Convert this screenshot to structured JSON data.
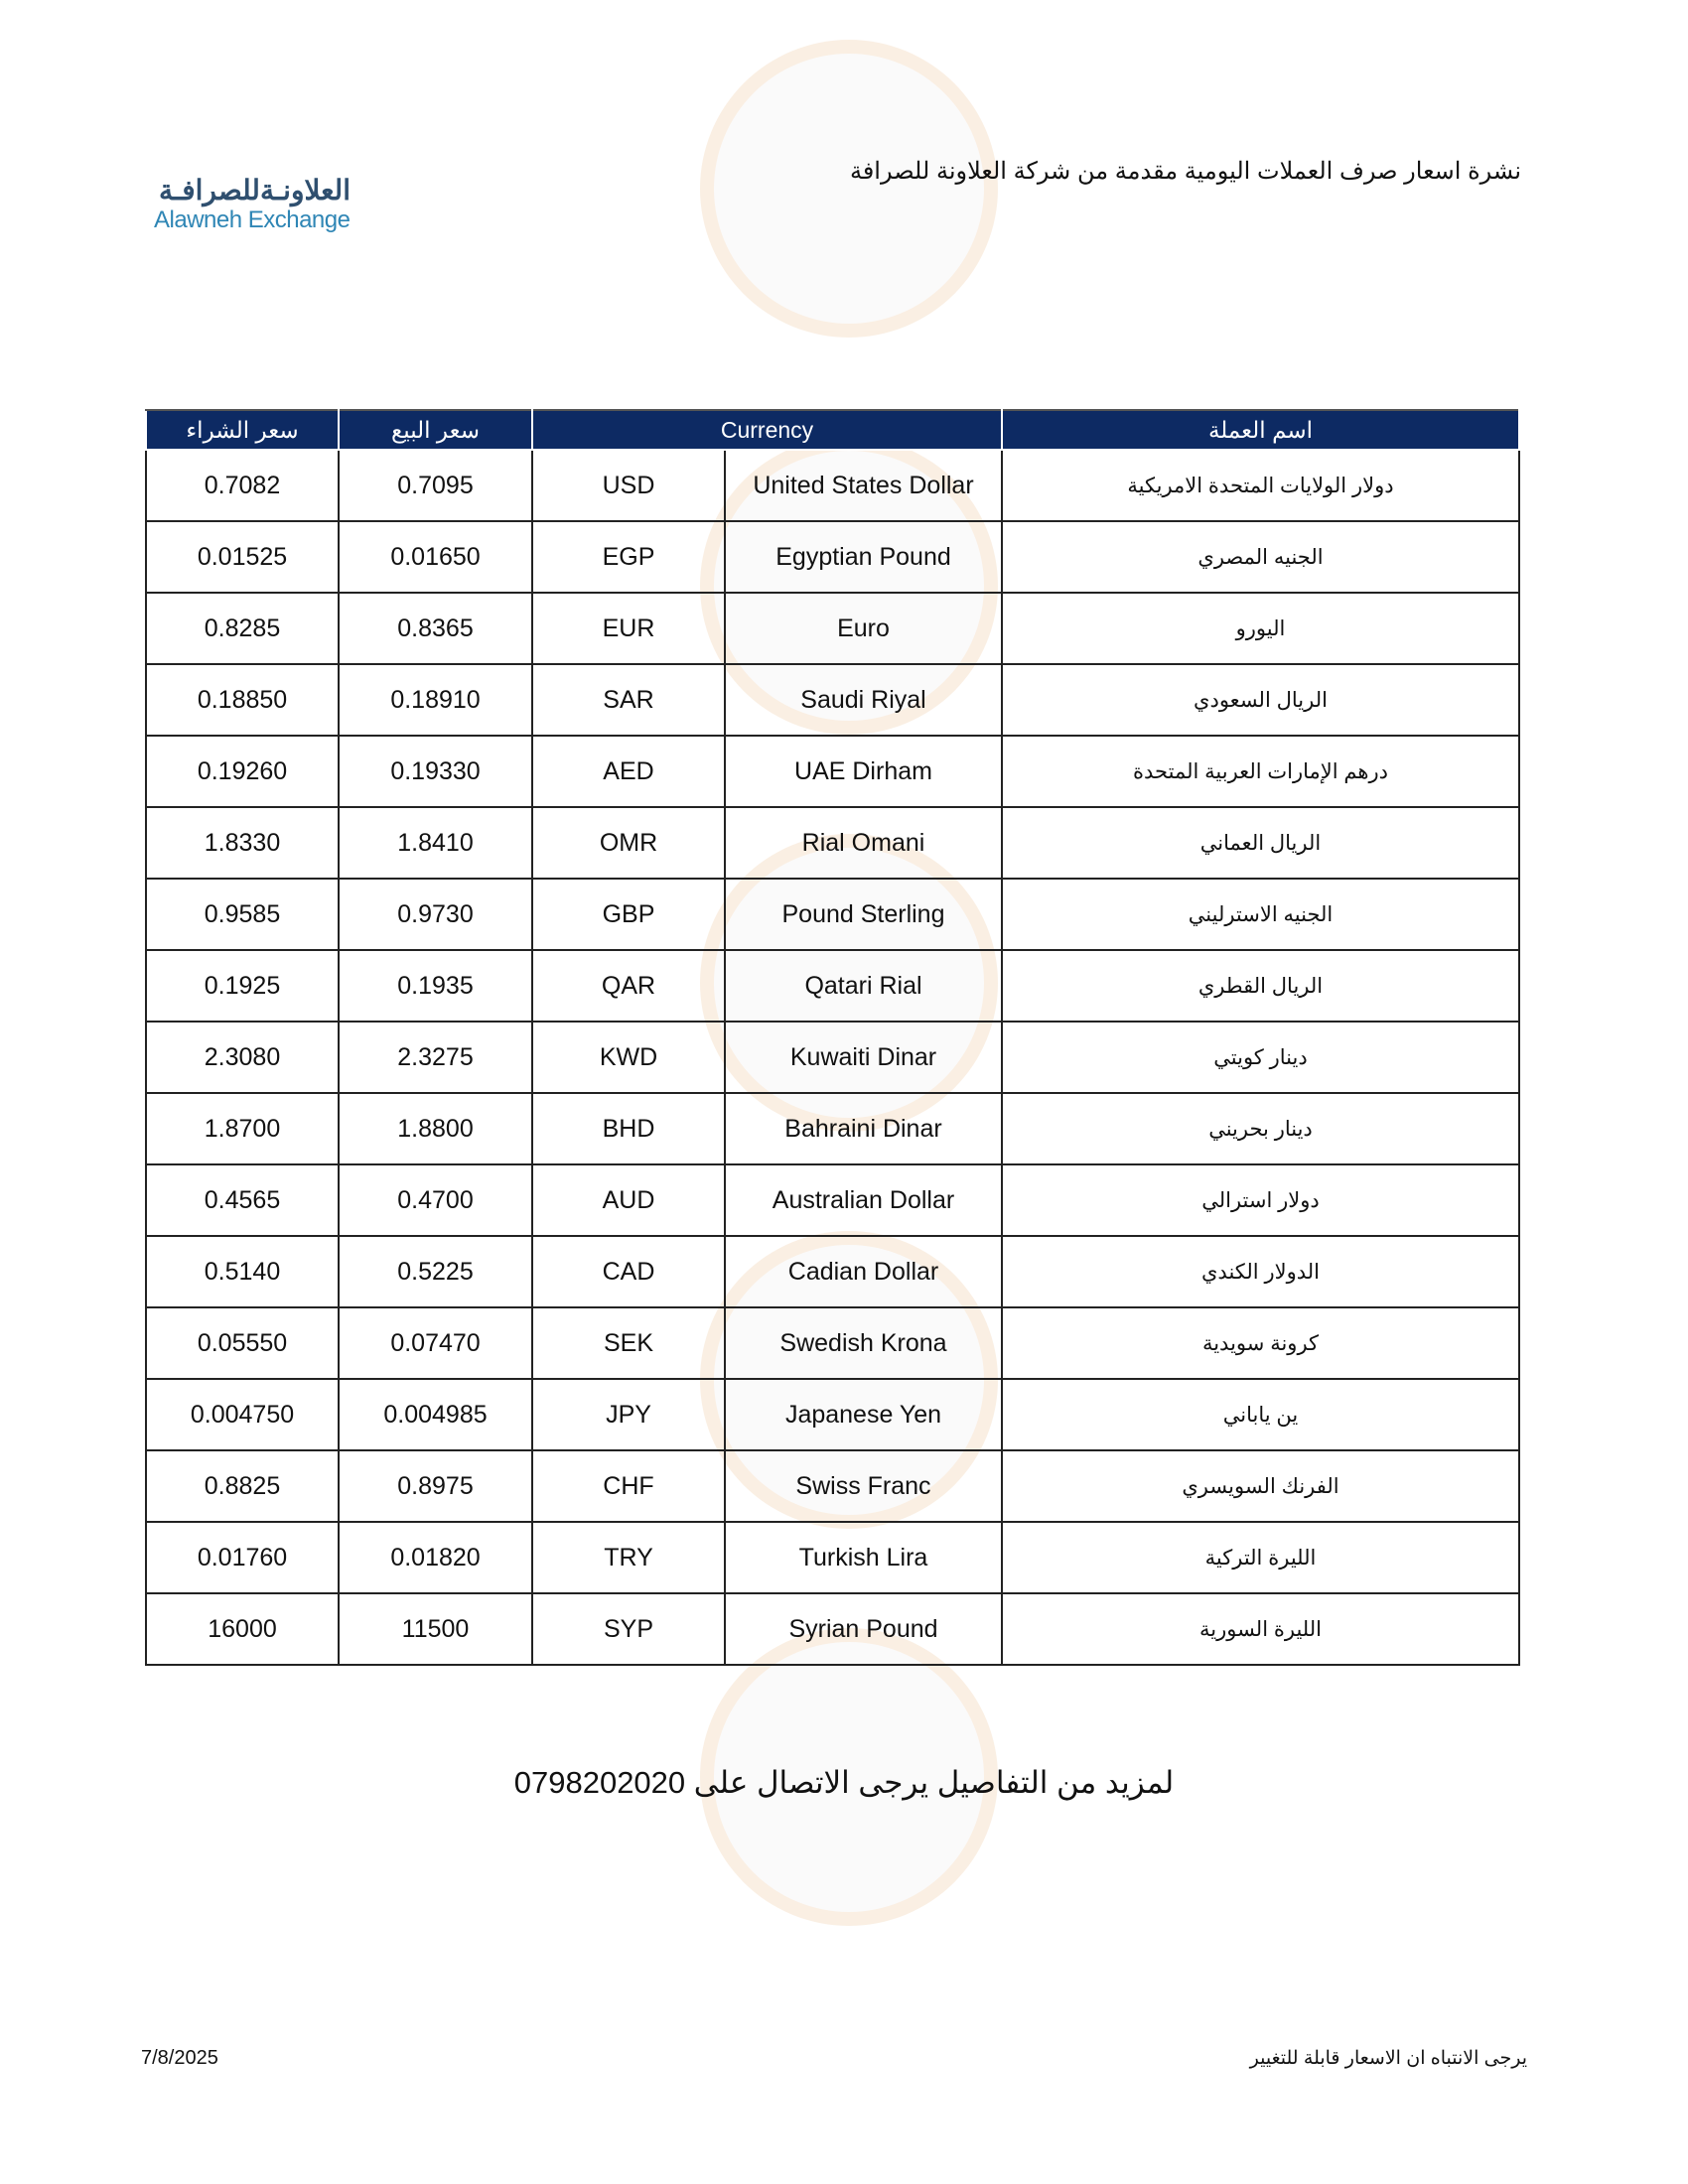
{
  "header": {
    "title": "نشرة اسعار صرف العملات اليومية مقدمة من شركة العلاونة للصرافة",
    "logo_ar": "العلاونـةللصرافـة",
    "logo_en": "Alawneh Exchange"
  },
  "table": {
    "headers": {
      "buy": "سعر الشراء",
      "sell": "سعر البيع",
      "currency": "Currency",
      "name_ar": "اسم العملة"
    },
    "rows": [
      {
        "buy": "0.7082",
        "sell": "0.7095",
        "code": "USD",
        "name_en": "United States Dollar",
        "name_ar": "دولار الولايات المتحدة الامريكية"
      },
      {
        "buy": "0.01525",
        "sell": "0.01650",
        "code": "EGP",
        "name_en": "Egyptian Pound",
        "name_ar": "الجنيه المصري"
      },
      {
        "buy": "0.8285",
        "sell": "0.8365",
        "code": "EUR",
        "name_en": "Euro",
        "name_ar": "اليورو"
      },
      {
        "buy": "0.18850",
        "sell": "0.18910",
        "code": "SAR",
        "name_en": "Saudi Riyal",
        "name_ar": "الريال السعودي"
      },
      {
        "buy": "0.19260",
        "sell": "0.19330",
        "code": "AED",
        "name_en": "UAE Dirham",
        "name_ar": "درهم الإمارات العربية المتحدة"
      },
      {
        "buy": "1.8330",
        "sell": "1.8410",
        "code": "OMR",
        "name_en": "Rial Omani",
        "name_ar": "الريال العماني"
      },
      {
        "buy": "0.9585",
        "sell": "0.9730",
        "code": "GBP",
        "name_en": "Pound Sterling",
        "name_ar": "الجنيه الاسترليني"
      },
      {
        "buy": "0.1925",
        "sell": "0.1935",
        "code": "QAR",
        "name_en": "Qatari Rial",
        "name_ar": "الريال القطري"
      },
      {
        "buy": "2.3080",
        "sell": "2.3275",
        "code": "KWD",
        "name_en": "Kuwaiti Dinar",
        "name_ar": "دينار كويتي"
      },
      {
        "buy": "1.8700",
        "sell": "1.8800",
        "code": "BHD",
        "name_en": "Bahraini Dinar",
        "name_ar": "دينار بحريني"
      },
      {
        "buy": "0.4565",
        "sell": "0.4700",
        "code": "AUD",
        "name_en": "Australian Dollar",
        "name_ar": "دولار استرالي"
      },
      {
        "buy": "0.5140",
        "sell": "0.5225",
        "code": "CAD",
        "name_en": "Cadian Dollar",
        "name_ar": "الدولار الكندي"
      },
      {
        "buy": "0.05550",
        "sell": "0.07470",
        "code": "SEK",
        "name_en": "Swedish Krona",
        "name_ar": "كرونة سويدية"
      },
      {
        "buy": "0.004750",
        "sell": "0.004985",
        "code": "JPY",
        "name_en": "Japanese Yen",
        "name_ar": "ين ياباني"
      },
      {
        "buy": "0.8825",
        "sell": "0.8975",
        "code": "CHF",
        "name_en": "Swiss Franc",
        "name_ar": "الفرنك السويسري"
      },
      {
        "buy": "0.01760",
        "sell": "0.01820",
        "code": "TRY",
        "name_en": "Turkish Lira",
        "name_ar": "الليرة التركية"
      },
      {
        "buy": "16000",
        "sell": "11500",
        "code": "SYP",
        "name_en": "Syrian Pound",
        "name_ar": "الليرة السورية"
      }
    ]
  },
  "footer": {
    "contact": "لمزيد من التفاصيل يرجى الاتصال على 0798202020",
    "date": "7/8/2025",
    "note": "يرجى الانتباه ان الاسعار قابلة للتغيير"
  },
  "colors": {
    "header_bg": "#0d2a63",
    "logo_ar": "#2f4f6f",
    "logo_en": "#2f86b5"
  }
}
